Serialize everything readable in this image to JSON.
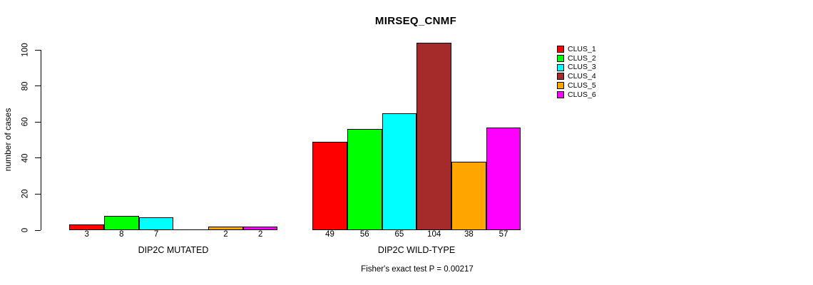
{
  "chart_data": {
    "type": "bar",
    "title": "MIRSEQ_CNMF",
    "ylabel": "number of cases",
    "xlabel_groups": [
      "DIP2C MUTATED",
      "DIP2C WILD-TYPE"
    ],
    "annotation": "Fisher's exact test P = 0.00217",
    "categories": [
      "DIP2C MUTATED",
      "DIP2C WILD-TYPE"
    ],
    "series": [
      {
        "name": "CLUS_1",
        "color": "#FF0000",
        "values": [
          3,
          49
        ]
      },
      {
        "name": "CLUS_2",
        "color": "#00FF00",
        "values": [
          8,
          56
        ]
      },
      {
        "name": "CLUS_3",
        "color": "#00FFFF",
        "values": [
          7,
          65
        ]
      },
      {
        "name": "CLUS_4",
        "color": "#A52A2A",
        "values": [
          0,
          104
        ]
      },
      {
        "name": "CLUS_5",
        "color": "#FFA500",
        "values": [
          2,
          38
        ]
      },
      {
        "name": "CLUS_6",
        "color": "#FF00FF",
        "values": [
          2,
          57
        ]
      }
    ],
    "bar_labels": [
      [
        "3",
        "8",
        "7",
        "",
        "2",
        "2"
      ],
      [
        "49",
        "56",
        "65",
        "104",
        "38",
        "57"
      ]
    ],
    "ylim": [
      0,
      100
    ],
    "yticks": [
      "0",
      "20",
      "40",
      "60",
      "80",
      "100"
    ],
    "legend_position": "top-right",
    "grid": false,
    "axis_color": "#000000",
    "background_color": "#FFFFFF"
  }
}
